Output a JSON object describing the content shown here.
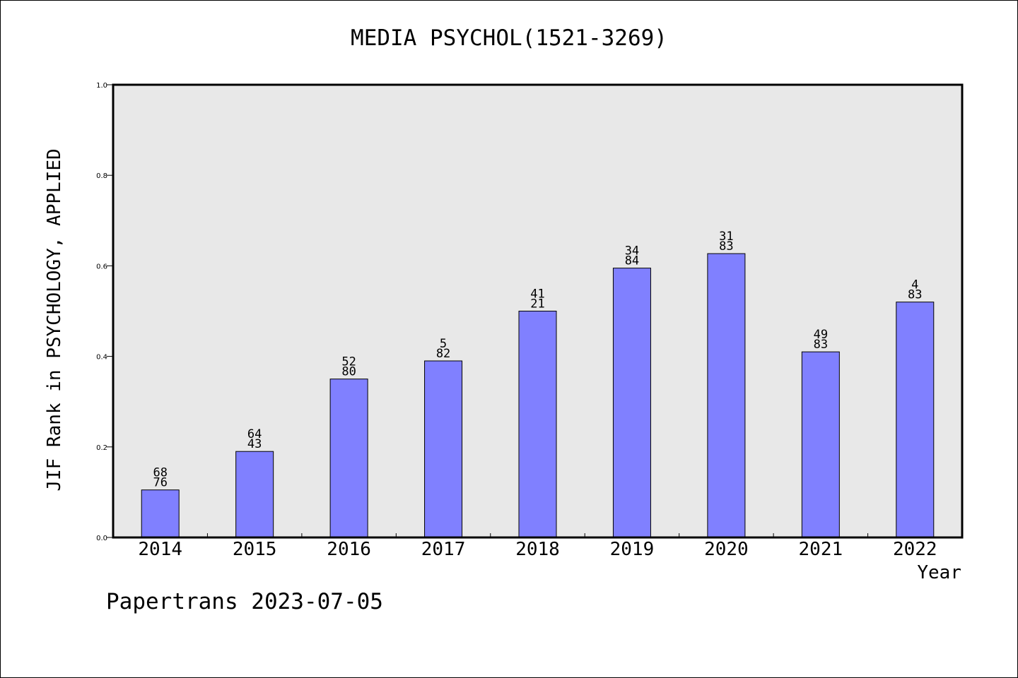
{
  "title": "MEDIA PSYCHOL(1521-3269)",
  "footer": "Papertrans 2023-07-05",
  "chart_data": {
    "type": "bar",
    "title": "MEDIA PSYCHOL(1521-3269)",
    "xlabel": "Year",
    "ylabel": "JIF Rank in PSYCHOLOGY, APPLIED",
    "ylim": [
      0.0,
      1.0
    ],
    "yticks": [
      "0.0",
      "0.2",
      "0.4",
      "0.6",
      "0.8",
      "1.0"
    ],
    "categories": [
      "2014",
      "2015",
      "2016",
      "2017",
      "2018",
      "2019",
      "2020",
      "2021",
      "2022"
    ],
    "values": [
      0.105,
      0.19,
      0.35,
      0.39,
      0.5,
      0.595,
      0.627,
      0.41,
      0.52
    ],
    "labels": [
      [
        "68",
        "76"
      ],
      [
        "64",
        "43"
      ],
      [
        "52",
        "80"
      ],
      [
        "5",
        "82"
      ],
      [
        "41",
        "21"
      ],
      [
        "34",
        "84"
      ],
      [
        "31",
        "83"
      ],
      [
        "49",
        "83"
      ],
      [
        "4",
        "83"
      ]
    ],
    "bar_color": "#8080ff",
    "plot_background": "#e8e8e8",
    "grid": false
  }
}
